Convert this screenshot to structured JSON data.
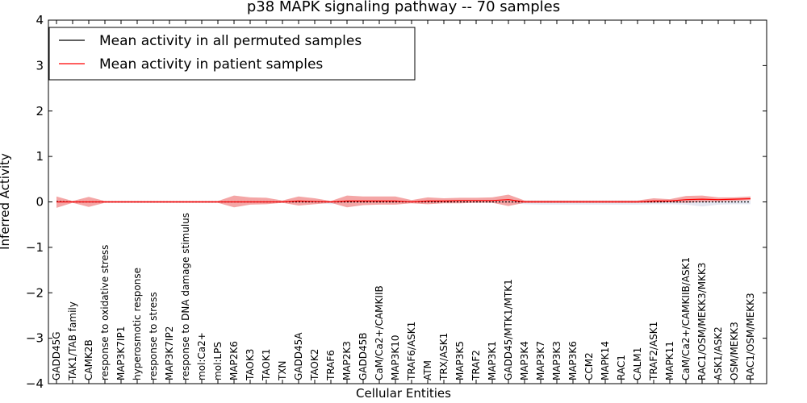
{
  "chart_data": {
    "type": "line",
    "title": "p38 MAPK signaling pathway -- 70 samples",
    "xlabel": "Cellular Entities",
    "ylabel": "Inferred Activity",
    "ylim": [
      -4,
      4
    ],
    "yticks": [
      "−4",
      "−3",
      "−2",
      "−1",
      "0",
      "1",
      "2",
      "3",
      "4"
    ],
    "ytick_values": [
      -4,
      -3,
      -2,
      -1,
      0,
      1,
      2,
      3,
      4
    ],
    "legend_position": "top-left",
    "categories": [
      "GADD45G",
      "TAK1/TAB family",
      "CAMK2B",
      "response to oxidative stress",
      "MAP3K7IP1",
      "hyperosmotic response",
      "response to stress",
      "MAP3K7IP2",
      "response to DNA damage stimulus",
      "mol:Ca2+",
      "mol:LPS",
      "MAP2K6",
      "TAOK3",
      "TAOK1",
      "TXN",
      "GADD45A",
      "TAOK2",
      "TRAF6",
      "MAP2K3",
      "GADD45B",
      "CaM/Ca2+/CAMKIIB",
      "MAP3K10",
      "TRAF6/ASK1",
      "ATM",
      "TRX/ASK1",
      "MAP3K5",
      "TRAF2",
      "MAP3K1",
      "GADD45/MTK1/MTK1",
      "MAP3K4",
      "MAP3K7",
      "MAP3K3",
      "MAP3K6",
      "CCM2",
      "MAPK14",
      "RAC1",
      "CALM1",
      "TRAF2/ASK1",
      "MAPK11",
      "CaM/Ca2+/CAMKIIB/ASK1",
      "RAC1/OSM/MEKK3/MKK3",
      "ASK1/ASK2",
      "OSM/MEKK3",
      "RAC1/OSM/MEKK3"
    ],
    "series": [
      {
        "name": "Mean activity in all permuted samples",
        "color": "#000000",
        "values": [
          0.01,
          0.0,
          0.0,
          0.0,
          0.0,
          0.0,
          0.0,
          0.0,
          0.0,
          0.0,
          0.0,
          0.0,
          0.0,
          0.0,
          0.0,
          0.0,
          0.0,
          0.0,
          0.0,
          0.0,
          0.0,
          0.0,
          0.0,
          0.0,
          0.0,
          0.0,
          0.0,
          0.0,
          0.0,
          0.0,
          0.0,
          0.0,
          0.0,
          0.0,
          0.0,
          0.0,
          0.0,
          0.0,
          0.0,
          0.0,
          0.0,
          0.0,
          0.0,
          0.0
        ],
        "band_upper": [
          0.03,
          0.02,
          0.02,
          0.02,
          0.02,
          0.02,
          0.02,
          0.02,
          0.02,
          0.02,
          0.02,
          0.02,
          0.02,
          0.02,
          0.02,
          0.02,
          0.02,
          0.02,
          0.02,
          0.02,
          0.02,
          0.02,
          0.02,
          0.02,
          0.02,
          0.02,
          0.02,
          0.02,
          0.02,
          0.03,
          0.03,
          0.03,
          0.03,
          0.03,
          0.03,
          0.03,
          0.03,
          0.03,
          0.03,
          0.03,
          0.03,
          0.03,
          0.03,
          0.03
        ],
        "band_lower": [
          -0.03,
          -0.02,
          -0.02,
          -0.02,
          -0.02,
          -0.02,
          -0.02,
          -0.02,
          -0.02,
          -0.02,
          -0.02,
          -0.02,
          -0.02,
          -0.02,
          -0.02,
          -0.02,
          -0.02,
          -0.05,
          -0.02,
          -0.02,
          -0.02,
          -0.02,
          -0.02,
          -0.02,
          -0.02,
          -0.02,
          -0.02,
          -0.02,
          -0.02,
          -0.05,
          -0.06,
          -0.06,
          -0.06,
          -0.06,
          -0.06,
          -0.06,
          -0.06,
          -0.05,
          -0.05,
          -0.06,
          -0.1,
          -0.06,
          -0.05,
          -0.05
        ]
      },
      {
        "name": "Mean activity in patient samples",
        "color": "#ff0000",
        "values": [
          0.0,
          0.0,
          0.0,
          0.0,
          0.0,
          0.0,
          0.0,
          0.0,
          0.0,
          0.0,
          0.0,
          0.0,
          0.0,
          0.0,
          0.0,
          0.02,
          0.01,
          0.0,
          0.02,
          0.02,
          0.02,
          0.02,
          0.0,
          0.02,
          0.02,
          0.03,
          0.03,
          0.03,
          0.05,
          0.0,
          0.0,
          0.0,
          0.0,
          0.0,
          0.0,
          0.0,
          0.0,
          0.02,
          0.02,
          0.05,
          0.06,
          0.05,
          0.06,
          0.07
        ],
        "band_upper": [
          0.12,
          0.02,
          0.11,
          0.02,
          0.02,
          0.02,
          0.02,
          0.02,
          0.02,
          0.02,
          0.02,
          0.14,
          0.1,
          0.09,
          0.03,
          0.12,
          0.08,
          0.02,
          0.14,
          0.12,
          0.12,
          0.12,
          0.04,
          0.1,
          0.08,
          0.09,
          0.09,
          0.1,
          0.16,
          0.03,
          0.03,
          0.03,
          0.03,
          0.03,
          0.03,
          0.03,
          0.03,
          0.08,
          0.06,
          0.13,
          0.14,
          0.1,
          0.1,
          0.12
        ],
        "band_lower": [
          -0.13,
          -0.02,
          -0.11,
          -0.02,
          -0.02,
          -0.02,
          -0.02,
          -0.02,
          -0.02,
          -0.02,
          -0.02,
          -0.12,
          -0.06,
          -0.05,
          -0.02,
          -0.08,
          -0.05,
          -0.02,
          -0.12,
          -0.07,
          -0.06,
          -0.06,
          -0.03,
          -0.05,
          -0.03,
          -0.03,
          -0.02,
          -0.02,
          -0.09,
          -0.02,
          -0.02,
          -0.02,
          -0.02,
          -0.02,
          -0.02,
          -0.02,
          -0.02,
          -0.02,
          -0.01,
          -0.02,
          0.0,
          0.01,
          0.02,
          0.04
        ]
      }
    ]
  }
}
